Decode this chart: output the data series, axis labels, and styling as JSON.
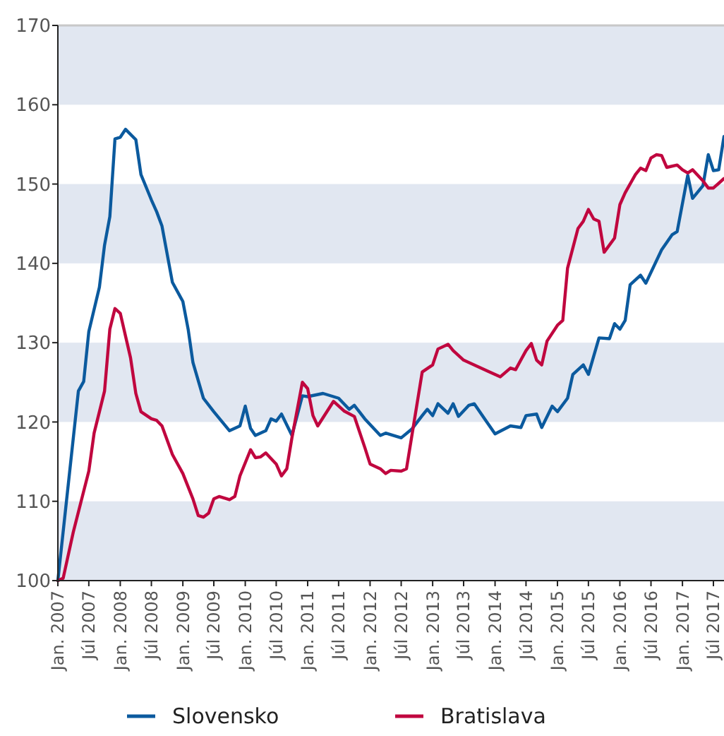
{
  "chart_data": {
    "type": "line",
    "series": [
      {
        "name": "Slovensko",
        "color": "#0b5a9e",
        "x": [
          "2007-01",
          "2007-05",
          "2007-06",
          "2007-07",
          "2007-09",
          "2007-10",
          "2007-11",
          "2007-12",
          "2008-01",
          "2008-02",
          "2008-04",
          "2008-05",
          "2008-07",
          "2008-08",
          "2008-09",
          "2008-11",
          "2009-01",
          "2009-02",
          "2009-03",
          "2009-05",
          "2009-07",
          "2009-10",
          "2009-12",
          "2010-01",
          "2010-02",
          "2010-03",
          "2010-05",
          "2010-06",
          "2010-07",
          "2010-08",
          "2010-10",
          "2010-12",
          "2011-01",
          "2011-04",
          "2011-07",
          "2011-09",
          "2011-10",
          "2011-12",
          "2012-03",
          "2012-04",
          "2012-07",
          "2012-09",
          "2012-11",
          "2012-12",
          "2013-01",
          "2013-02",
          "2013-04",
          "2013-05",
          "2013-06",
          "2013-08",
          "2013-09",
          "2013-11",
          "2014-01",
          "2014-04",
          "2014-06",
          "2014-07",
          "2014-09",
          "2014-10",
          "2014-12",
          "2015-01",
          "2015-03",
          "2015-04",
          "2015-06",
          "2015-07",
          "2015-09",
          "2015-11",
          "2015-12",
          "2016-01",
          "2016-02",
          "2016-03",
          "2016-05",
          "2016-06",
          "2016-09",
          "2016-11",
          "2016-12",
          "2017-02",
          "2017-03",
          "2017-05",
          "2017-06",
          "2017-07",
          "2017-08",
          "2017-09"
        ],
        "values": [
          100,
          123.9,
          125.1,
          131.4,
          137,
          142.3,
          145.9,
          155.7,
          155.9,
          156.9,
          155.6,
          151.2,
          148,
          146.5,
          144.7,
          137.6,
          135.2,
          131.7,
          127.5,
          123,
          121.3,
          118.9,
          119.5,
          122,
          119.2,
          118.3,
          118.9,
          120.4,
          120.1,
          121,
          118.3,
          123.3,
          123.2,
          123.6,
          123,
          121.6,
          122.1,
          120.4,
          118.3,
          118.6,
          118,
          119.1,
          120.8,
          121.6,
          120.8,
          122.3,
          121.1,
          122.3,
          120.7,
          122.1,
          122.3,
          120.4,
          118.5,
          119.5,
          119.3,
          120.8,
          121,
          119.3,
          122,
          121.3,
          123,
          126,
          127.2,
          126,
          130.6,
          130.5,
          132.4,
          131.7,
          132.8,
          137.3,
          138.5,
          137.5,
          141.7,
          143.6,
          144,
          151.1,
          148.2,
          149.8,
          153.7,
          151.7,
          151.8,
          156
        ]
      },
      {
        "name": "Bratislava",
        "color": "#c0073f",
        "x": [
          "2007-01",
          "2007-02",
          "2007-04",
          "2007-07",
          "2007-08",
          "2007-10",
          "2007-11",
          "2007-12",
          "2008-01",
          "2008-03",
          "2008-04",
          "2008-05",
          "2008-07",
          "2008-08",
          "2008-09",
          "2008-11",
          "2009-01",
          "2009-03",
          "2009-04",
          "2009-05",
          "2009-06",
          "2009-07",
          "2009-08",
          "2009-10",
          "2009-11",
          "2009-12",
          "2010-02",
          "2010-03",
          "2010-04",
          "2010-05",
          "2010-07",
          "2010-08",
          "2010-09",
          "2010-10",
          "2010-12",
          "2011-01",
          "2011-02",
          "2011-03",
          "2011-06",
          "2011-08",
          "2011-10",
          "2011-12",
          "2012-01",
          "2012-03",
          "2012-04",
          "2012-05",
          "2012-07",
          "2012-08",
          "2012-11",
          "2013-01",
          "2013-02",
          "2013-04",
          "2013-05",
          "2013-07",
          "2013-10",
          "2013-12",
          "2014-02",
          "2014-04",
          "2014-05",
          "2014-07",
          "2014-08",
          "2014-09",
          "2014-10",
          "2014-11",
          "2015-01",
          "2015-02",
          "2015-03",
          "2015-05",
          "2015-06",
          "2015-07",
          "2015-08",
          "2015-09",
          "2015-10",
          "2015-12",
          "2016-01",
          "2016-02",
          "2016-04",
          "2016-05",
          "2016-06",
          "2016-07",
          "2016-08",
          "2016-09",
          "2016-10",
          "2016-12",
          "2017-01",
          "2017-02",
          "2017-03",
          "2017-05",
          "2017-06",
          "2017-07",
          "2017-09"
        ],
        "values": [
          100,
          100.3,
          106.1,
          113.8,
          118.6,
          123.9,
          131.7,
          134.3,
          133.7,
          128.1,
          123.6,
          121.3,
          120.4,
          120.2,
          119.5,
          115.9,
          113.5,
          110.3,
          108.2,
          108,
          108.5,
          110.3,
          110.6,
          110.2,
          110.6,
          113.2,
          116.5,
          115.5,
          115.6,
          116.1,
          114.7,
          113.2,
          114.1,
          118,
          125,
          124.2,
          120.8,
          119.5,
          122.6,
          121.4,
          120.7,
          116.8,
          114.7,
          114.1,
          113.5,
          113.9,
          113.8,
          114.1,
          126.3,
          127.2,
          129.2,
          129.8,
          129,
          127.8,
          126.9,
          126.3,
          125.7,
          126.8,
          126.6,
          129,
          129.9,
          127.8,
          127.2,
          130.2,
          132.2,
          132.8,
          139.4,
          144.4,
          145.3,
          146.8,
          145.6,
          145.3,
          141.4,
          143.2,
          147.4,
          148.9,
          151.2,
          152,
          151.7,
          153.3,
          153.7,
          153.6,
          152.1,
          152.4,
          151.8,
          151.4,
          151.8,
          150.4,
          149.5,
          149.5,
          150.7
        ]
      }
    ],
    "xlim": [
      "2007-01",
      "2017-09"
    ],
    "xticks": [
      {
        "value": "2007-01",
        "label": "Jan. 2007"
      },
      {
        "value": "2007-07",
        "label": "Júl 2007"
      },
      {
        "value": "2008-01",
        "label": "Jan. 2008"
      },
      {
        "value": "2008-07",
        "label": "Júl 2008"
      },
      {
        "value": "2009-01",
        "label": "Jan. 2009"
      },
      {
        "value": "2009-07",
        "label": "Júl 2009"
      },
      {
        "value": "2010-01",
        "label": "Jan. 2010"
      },
      {
        "value": "2010-07",
        "label": "Júl 2010"
      },
      {
        "value": "2011-01",
        "label": "Jan. 2011"
      },
      {
        "value": "2011-07",
        "label": "Júl 2011"
      },
      {
        "value": "2012-01",
        "label": "Jan. 2012"
      },
      {
        "value": "2012-07",
        "label": "Júl 2012"
      },
      {
        "value": "2013-01",
        "label": "Jan. 2013"
      },
      {
        "value": "2013-07",
        "label": "Júl 2013"
      },
      {
        "value": "2014-01",
        "label": "Jan. 2014"
      },
      {
        "value": "2014-07",
        "label": "Júl 2014"
      },
      {
        "value": "2015-01",
        "label": "Jan. 2015"
      },
      {
        "value": "2015-07",
        "label": "Júl 2015"
      },
      {
        "value": "2016-01",
        "label": "Jan. 2016"
      },
      {
        "value": "2016-07",
        "label": "Júl 2016"
      },
      {
        "value": "2017-01",
        "label": "Jan. 2017"
      },
      {
        "value": "2017-07",
        "label": "Júl 2017"
      }
    ],
    "ylim": [
      100,
      170
    ],
    "yticks": [
      100,
      110,
      120,
      130,
      140,
      150,
      160,
      170
    ],
    "legend": "bottom",
    "marker": "none",
    "line_style": "solid"
  }
}
